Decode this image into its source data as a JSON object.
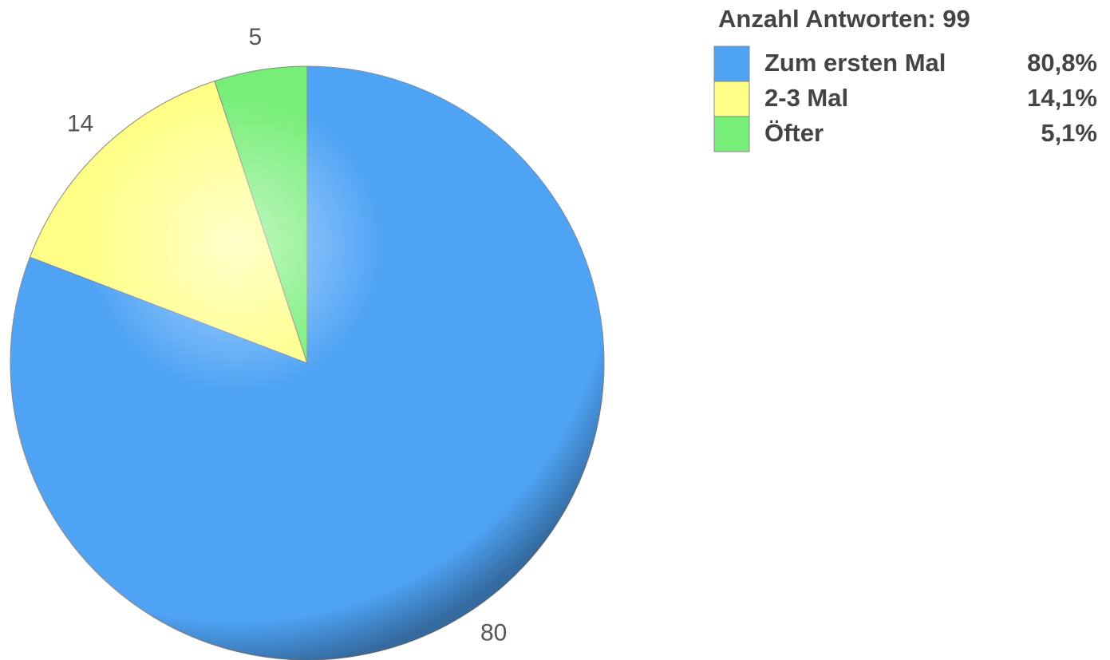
{
  "chart_data": {
    "type": "pie",
    "title": "Anzahl Antworten: 99",
    "categories": [
      "Zum ersten Mal",
      "2-3 Mal",
      "Öfter"
    ],
    "values": [
      80,
      14,
      5
    ],
    "colors": [
      "#4fa3f5",
      "#ffff88",
      "#77ee77"
    ],
    "shares": [
      {
        "value": 80.8,
        "label": "80,8%"
      },
      {
        "value": 14.1,
        "label": "14,1%"
      },
      {
        "value": 5.1,
        "label": "5,1%"
      }
    ],
    "legend": "top-right"
  }
}
